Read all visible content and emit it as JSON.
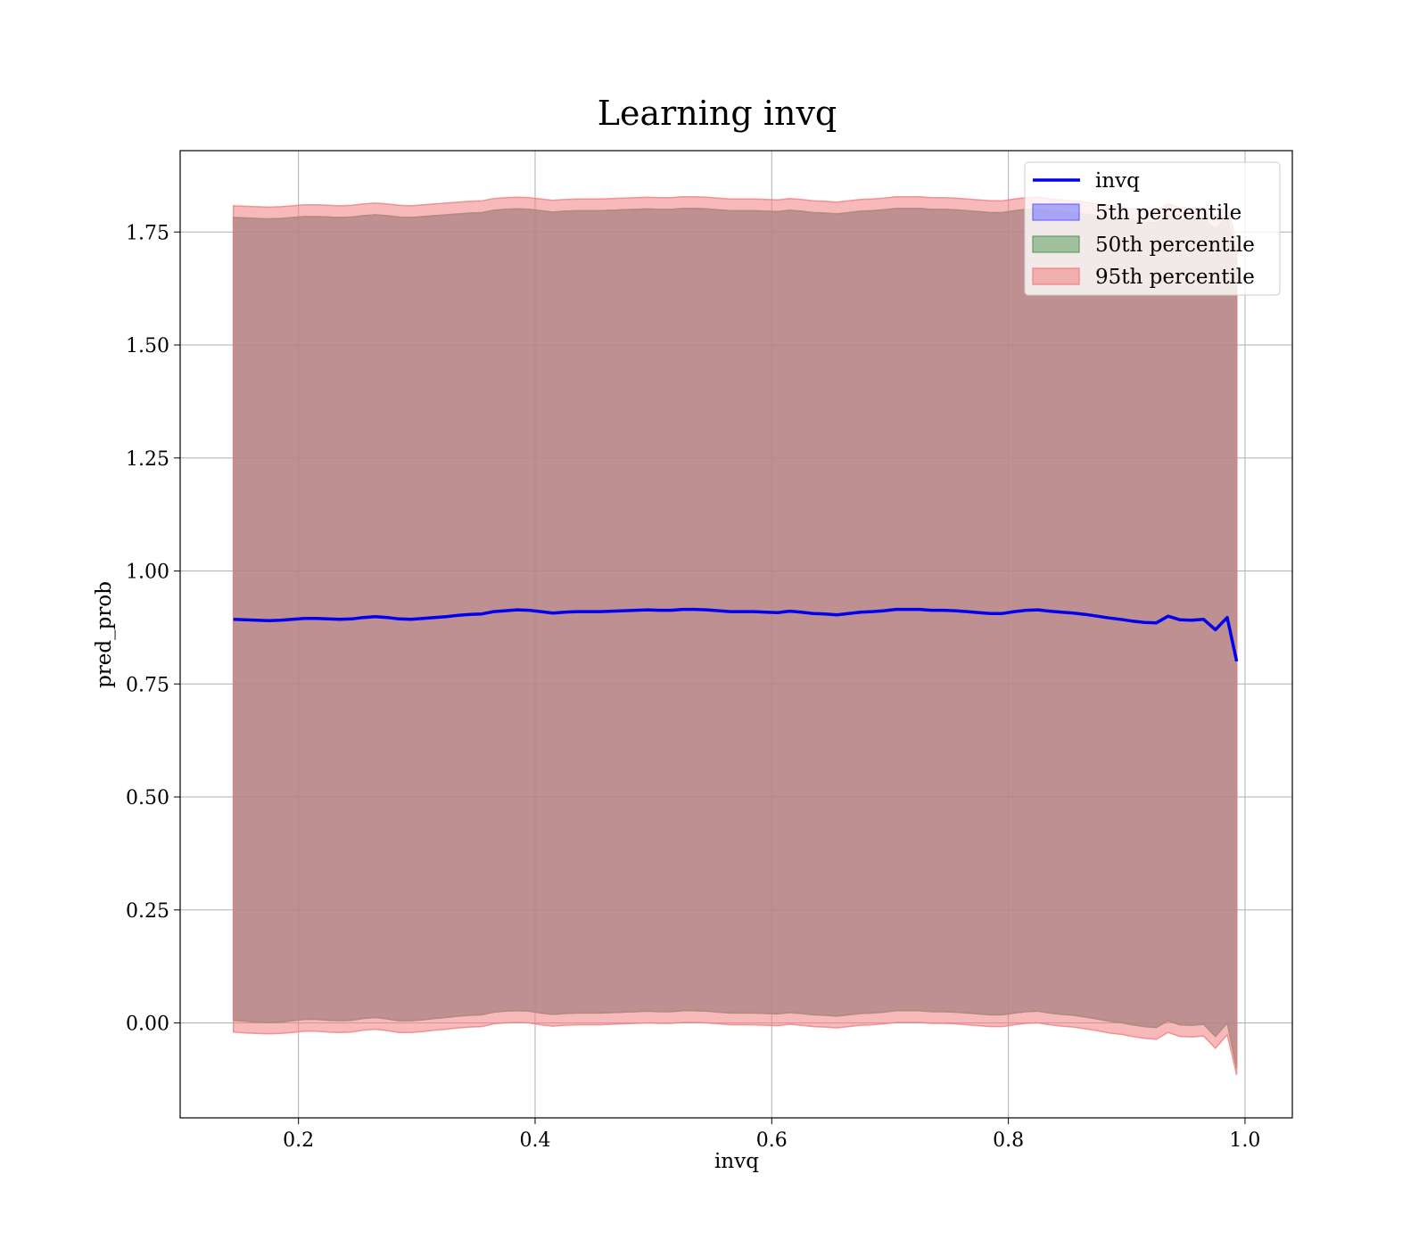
{
  "chart_data": {
    "type": "line",
    "title": "Learning invq",
    "xlabel": "invq",
    "ylabel": "pred_prob",
    "xlim": [
      0.1,
      1.04
    ],
    "ylim": [
      -0.21,
      1.93
    ],
    "xticks": [
      0.2,
      0.4,
      0.6,
      0.8,
      1.0
    ],
    "xtick_labels": [
      "0.2",
      "0.4",
      "0.6",
      "0.8",
      "1.0"
    ],
    "yticks": [
      0.0,
      0.25,
      0.5,
      0.75,
      1.0,
      1.25,
      1.5,
      1.75
    ],
    "ytick_labels": [
      "0.00",
      "0.25",
      "0.50",
      "0.75",
      "1.00",
      "1.25",
      "1.50",
      "1.75"
    ],
    "grid": true,
    "legend_position": "top-right",
    "x": [
      0.145,
      0.155,
      0.165,
      0.175,
      0.185,
      0.195,
      0.205,
      0.215,
      0.225,
      0.235,
      0.245,
      0.255,
      0.265,
      0.275,
      0.285,
      0.295,
      0.305,
      0.315,
      0.325,
      0.335,
      0.345,
      0.355,
      0.365,
      0.375,
      0.385,
      0.395,
      0.405,
      0.415,
      0.425,
      0.435,
      0.445,
      0.455,
      0.465,
      0.475,
      0.485,
      0.495,
      0.505,
      0.515,
      0.525,
      0.535,
      0.545,
      0.555,
      0.565,
      0.575,
      0.585,
      0.595,
      0.605,
      0.615,
      0.625,
      0.635,
      0.645,
      0.655,
      0.665,
      0.675,
      0.685,
      0.695,
      0.705,
      0.715,
      0.725,
      0.735,
      0.745,
      0.755,
      0.765,
      0.775,
      0.785,
      0.795,
      0.805,
      0.815,
      0.825,
      0.835,
      0.845,
      0.855,
      0.865,
      0.875,
      0.885,
      0.895,
      0.905,
      0.915,
      0.925,
      0.935,
      0.945,
      0.955,
      0.965,
      0.975,
      0.985,
      0.993
    ],
    "series": [
      {
        "name": "invq",
        "role": "line",
        "color": "#0000ee",
        "values": [
          0.893,
          0.892,
          0.891,
          0.89,
          0.891,
          0.893,
          0.895,
          0.895,
          0.894,
          0.893,
          0.894,
          0.897,
          0.899,
          0.897,
          0.894,
          0.893,
          0.895,
          0.897,
          0.899,
          0.902,
          0.904,
          0.905,
          0.91,
          0.912,
          0.914,
          0.913,
          0.91,
          0.907,
          0.909,
          0.91,
          0.91,
          0.91,
          0.911,
          0.912,
          0.913,
          0.914,
          0.913,
          0.913,
          0.915,
          0.915,
          0.914,
          0.912,
          0.91,
          0.91,
          0.91,
          0.909,
          0.908,
          0.911,
          0.909,
          0.906,
          0.905,
          0.903,
          0.906,
          0.909,
          0.91,
          0.912,
          0.915,
          0.915,
          0.915,
          0.913,
          0.913,
          0.912,
          0.91,
          0.908,
          0.906,
          0.906,
          0.91,
          0.913,
          0.914,
          0.911,
          0.909,
          0.907,
          0.904,
          0.9,
          0.896,
          0.893,
          0.889,
          0.886,
          0.885,
          0.9,
          0.892,
          0.891,
          0.893,
          0.87,
          0.897,
          0.8
        ]
      },
      {
        "name": "5th percentile",
        "role": "band",
        "color": "#6b6bff",
        "lower": [
          0.006,
          0.004,
          0.002,
          0.001,
          0.002,
          0.005,
          0.008,
          0.008,
          0.006,
          0.005,
          0.006,
          0.01,
          0.012,
          0.009,
          0.005,
          0.005,
          0.007,
          0.01,
          0.012,
          0.015,
          0.017,
          0.018,
          0.024,
          0.026,
          0.027,
          0.026,
          0.022,
          0.019,
          0.021,
          0.022,
          0.022,
          0.022,
          0.023,
          0.024,
          0.025,
          0.026,
          0.025,
          0.025,
          0.027,
          0.027,
          0.026,
          0.024,
          0.022,
          0.022,
          0.022,
          0.021,
          0.02,
          0.023,
          0.021,
          0.018,
          0.017,
          0.015,
          0.018,
          0.021,
          0.022,
          0.024,
          0.027,
          0.027,
          0.027,
          0.025,
          0.025,
          0.024,
          0.022,
          0.02,
          0.018,
          0.018,
          0.022,
          0.025,
          0.026,
          0.022,
          0.019,
          0.017,
          0.013,
          0.009,
          0.004,
          0.001,
          -0.004,
          -0.008,
          -0.01,
          0.005,
          -0.004,
          -0.005,
          -0.003,
          -0.03,
          0.0,
          -0.1
        ],
        "upper": [
          1.782,
          1.781,
          1.78,
          1.779,
          1.78,
          1.782,
          1.784,
          1.784,
          1.783,
          1.782,
          1.783,
          1.786,
          1.788,
          1.786,
          1.783,
          1.782,
          1.784,
          1.786,
          1.788,
          1.79,
          1.792,
          1.793,
          1.798,
          1.8,
          1.801,
          1.8,
          1.797,
          1.794,
          1.796,
          1.797,
          1.797,
          1.797,
          1.798,
          1.799,
          1.8,
          1.801,
          1.8,
          1.8,
          1.802,
          1.802,
          1.801,
          1.799,
          1.797,
          1.797,
          1.797,
          1.796,
          1.795,
          1.798,
          1.796,
          1.793,
          1.792,
          1.79,
          1.793,
          1.796,
          1.797,
          1.799,
          1.802,
          1.802,
          1.802,
          1.8,
          1.8,
          1.799,
          1.797,
          1.795,
          1.793,
          1.793,
          1.797,
          1.8,
          1.801,
          1.797,
          1.795,
          1.793,
          1.79,
          1.786,
          1.782,
          1.779,
          1.775,
          1.772,
          1.771,
          1.786,
          1.778,
          1.777,
          1.779,
          1.756,
          1.783,
          1.7
        ]
      },
      {
        "name": "50th percentile",
        "role": "band",
        "color": "#5f9f5f",
        "lower": [
          0.006,
          0.004,
          0.002,
          0.001,
          0.002,
          0.005,
          0.008,
          0.008,
          0.006,
          0.005,
          0.006,
          0.01,
          0.012,
          0.009,
          0.005,
          0.005,
          0.007,
          0.01,
          0.012,
          0.015,
          0.017,
          0.018,
          0.024,
          0.026,
          0.027,
          0.026,
          0.022,
          0.019,
          0.021,
          0.022,
          0.022,
          0.022,
          0.023,
          0.024,
          0.025,
          0.026,
          0.025,
          0.025,
          0.027,
          0.027,
          0.026,
          0.024,
          0.022,
          0.022,
          0.022,
          0.021,
          0.02,
          0.023,
          0.021,
          0.018,
          0.017,
          0.015,
          0.018,
          0.021,
          0.022,
          0.024,
          0.027,
          0.027,
          0.027,
          0.025,
          0.025,
          0.024,
          0.022,
          0.02,
          0.018,
          0.018,
          0.022,
          0.025,
          0.026,
          0.022,
          0.019,
          0.017,
          0.013,
          0.009,
          0.004,
          0.001,
          -0.004,
          -0.008,
          -0.01,
          0.005,
          -0.004,
          -0.005,
          -0.003,
          -0.03,
          0.0,
          -0.1
        ],
        "upper": [
          1.782,
          1.781,
          1.78,
          1.779,
          1.78,
          1.782,
          1.784,
          1.784,
          1.783,
          1.782,
          1.783,
          1.786,
          1.788,
          1.786,
          1.783,
          1.782,
          1.784,
          1.786,
          1.788,
          1.79,
          1.792,
          1.793,
          1.798,
          1.8,
          1.801,
          1.8,
          1.797,
          1.794,
          1.796,
          1.797,
          1.797,
          1.797,
          1.798,
          1.799,
          1.8,
          1.801,
          1.8,
          1.8,
          1.802,
          1.802,
          1.801,
          1.799,
          1.797,
          1.797,
          1.797,
          1.796,
          1.795,
          1.798,
          1.796,
          1.793,
          1.792,
          1.79,
          1.793,
          1.796,
          1.797,
          1.799,
          1.802,
          1.802,
          1.802,
          1.8,
          1.8,
          1.799,
          1.797,
          1.795,
          1.793,
          1.793,
          1.797,
          1.8,
          1.801,
          1.797,
          1.795,
          1.793,
          1.79,
          1.786,
          1.782,
          1.779,
          1.775,
          1.772,
          1.771,
          1.786,
          1.778,
          1.777,
          1.779,
          1.756,
          1.783,
          1.7
        ]
      },
      {
        "name": "95th percentile",
        "role": "band",
        "color": "#f08080",
        "lower": [
          -0.02,
          -0.022,
          -0.023,
          -0.024,
          -0.023,
          -0.021,
          -0.018,
          -0.018,
          -0.02,
          -0.021,
          -0.02,
          -0.016,
          -0.014,
          -0.017,
          -0.021,
          -0.021,
          -0.019,
          -0.016,
          -0.014,
          -0.011,
          -0.009,
          -0.008,
          -0.002,
          0.0,
          0.001,
          0.0,
          -0.004,
          -0.007,
          -0.005,
          -0.004,
          -0.004,
          -0.004,
          -0.003,
          -0.002,
          -0.001,
          0.0,
          -0.001,
          -0.001,
          0.001,
          0.001,
          0.0,
          -0.002,
          -0.004,
          -0.004,
          -0.004,
          -0.005,
          -0.006,
          -0.003,
          -0.005,
          -0.008,
          -0.009,
          -0.011,
          -0.008,
          -0.005,
          -0.004,
          -0.002,
          0.001,
          0.001,
          0.001,
          -0.001,
          -0.001,
          -0.002,
          -0.004,
          -0.006,
          -0.008,
          -0.008,
          -0.004,
          -0.001,
          0.0,
          -0.004,
          -0.007,
          -0.009,
          -0.013,
          -0.017,
          -0.022,
          -0.025,
          -0.03,
          -0.034,
          -0.036,
          -0.021,
          -0.03,
          -0.031,
          -0.029,
          -0.056,
          -0.026,
          -0.115
        ],
        "upper": [
          1.808,
          1.807,
          1.806,
          1.805,
          1.806,
          1.808,
          1.81,
          1.81,
          1.809,
          1.808,
          1.809,
          1.812,
          1.814,
          1.812,
          1.809,
          1.808,
          1.81,
          1.812,
          1.814,
          1.816,
          1.818,
          1.819,
          1.824,
          1.826,
          1.827,
          1.826,
          1.823,
          1.82,
          1.822,
          1.823,
          1.823,
          1.823,
          1.824,
          1.825,
          1.826,
          1.827,
          1.826,
          1.826,
          1.828,
          1.828,
          1.827,
          1.825,
          1.823,
          1.823,
          1.823,
          1.822,
          1.821,
          1.824,
          1.822,
          1.819,
          1.818,
          1.816,
          1.819,
          1.822,
          1.823,
          1.825,
          1.828,
          1.828,
          1.828,
          1.826,
          1.826,
          1.825,
          1.823,
          1.821,
          1.819,
          1.819,
          1.823,
          1.826,
          1.827,
          1.823,
          1.821,
          1.819,
          1.816,
          1.812,
          1.808,
          1.805,
          1.801,
          1.798,
          1.797,
          1.812,
          1.804,
          1.803,
          1.805,
          1.782,
          1.809,
          1.726
        ]
      }
    ]
  }
}
